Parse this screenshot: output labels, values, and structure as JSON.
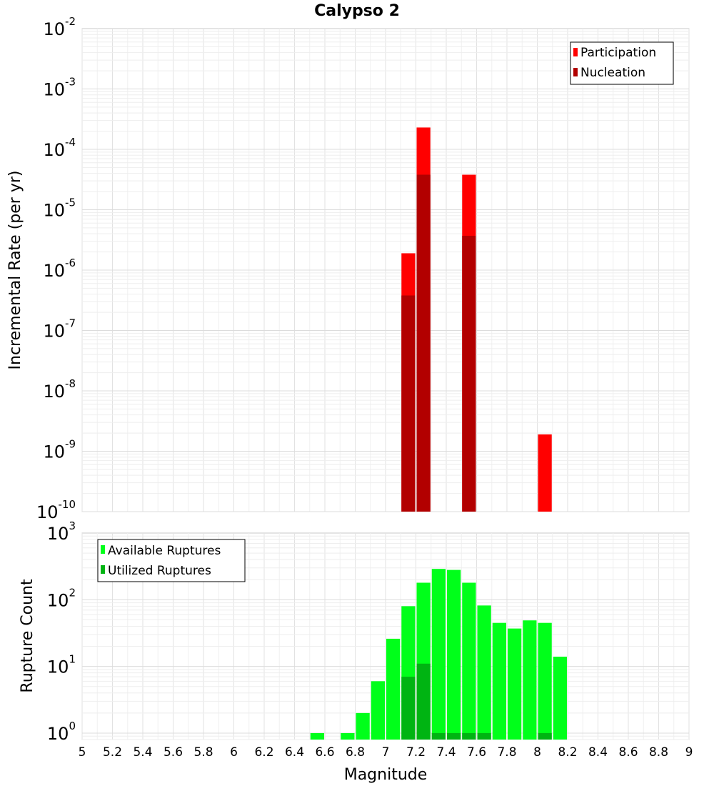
{
  "chart_data": [
    {
      "type": "bar",
      "title": "Calypso 2",
      "xlabel": "",
      "ylabel": "Incremental Rate (per yr)",
      "xlim": [
        5,
        9
      ],
      "ylim": [
        1e-10,
        0.01
      ],
      "yscale": "log",
      "ytick_exponents": [
        -2,
        -3,
        -4,
        -5,
        -6,
        -7,
        -8,
        -9,
        -10
      ],
      "ytick_base": "10",
      "grid": true,
      "legend": "top-right",
      "bin_width": 0.1,
      "series": [
        {
          "name": "Participation",
          "color": "#ff0000",
          "x": [
            7.15,
            7.25,
            7.55,
            8.05
          ],
          "values": [
            1.9e-06,
            0.00023,
            3.8e-05,
            1.9e-09
          ]
        },
        {
          "name": "Nucleation",
          "color": "#b20000",
          "x": [
            7.15,
            7.25,
            7.55
          ],
          "values": [
            3.8e-07,
            3.8e-05,
            3.7e-06
          ]
        }
      ]
    },
    {
      "type": "bar",
      "title": "",
      "xlabel": "Magnitude",
      "ylabel": "Rupture Count",
      "xlim": [
        5,
        9
      ],
      "ylim": [
        0.8,
        1000
      ],
      "yscale": "log",
      "ytick_exponents": [
        3,
        2,
        1,
        0
      ],
      "ytick_base": "10",
      "xticks": [
        "5",
        "5.2",
        "5.4",
        "5.6",
        "5.8",
        "6",
        "6.2",
        "6.4",
        "6.6",
        "6.8",
        "7",
        "7.2",
        "7.4",
        "7.6",
        "7.8",
        "8",
        "8.2",
        "8.4",
        "8.6",
        "8.8",
        "9"
      ],
      "grid": true,
      "legend": "top-left",
      "bin_width": 0.1,
      "series": [
        {
          "name": "Available Ruptures",
          "color": "#00ff1a",
          "x": [
            6.55,
            6.75,
            6.85,
            6.95,
            7.05,
            7.15,
            7.25,
            7.35,
            7.45,
            7.55,
            7.65,
            7.75,
            7.85,
            7.95,
            8.05,
            8.15
          ],
          "values": [
            1,
            1,
            2,
            6,
            26,
            80,
            180,
            290,
            280,
            180,
            82,
            45,
            37,
            49,
            45,
            14
          ]
        },
        {
          "name": "Utilized Ruptures",
          "color": "#00b412",
          "x": [
            7.15,
            7.25,
            7.35,
            7.45,
            7.55,
            7.65,
            8.05
          ],
          "values": [
            7,
            11,
            1,
            1,
            1,
            1,
            1
          ]
        }
      ]
    }
  ]
}
